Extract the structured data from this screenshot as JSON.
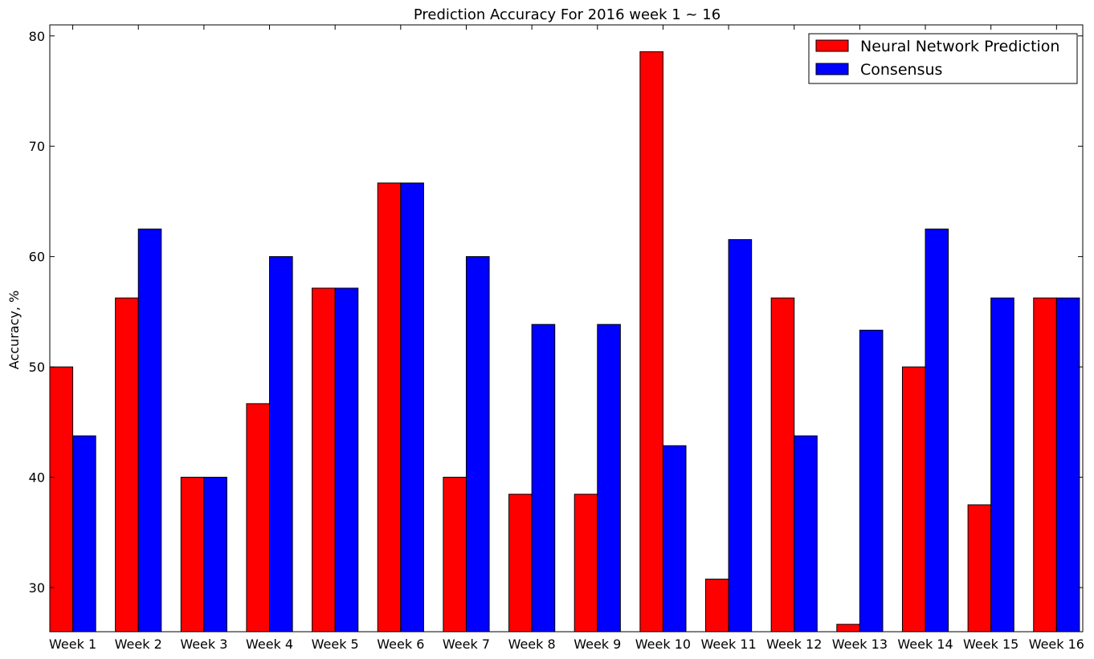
{
  "chart_data": {
    "type": "bar",
    "title": "Prediction Accuracy For 2016 week 1 ~ 16",
    "xlabel": "",
    "ylabel": "Accuracy, %",
    "ylim": [
      26,
      81
    ],
    "yticks": [
      30,
      40,
      50,
      60,
      70,
      80
    ],
    "grid": false,
    "legend_position": "top-right",
    "categories": [
      "Week 1",
      "Week 2",
      "Week 3",
      "Week 4",
      "Week 5",
      "Week 6",
      "Week 7",
      "Week 8",
      "Week 9",
      "Week 10",
      "Week 11",
      "Week 12",
      "Week 13",
      "Week 14",
      "Week 15",
      "Week 16"
    ],
    "series": [
      {
        "name": "Neural Network Prediction",
        "color": "#ff0000",
        "values": [
          50.0,
          56.25,
          40.0,
          46.67,
          57.14,
          66.67,
          40.0,
          38.46,
          38.46,
          78.57,
          30.77,
          56.25,
          26.67,
          50.0,
          37.5,
          56.25
        ]
      },
      {
        "name": "Consensus",
        "color": "#0000ff",
        "values": [
          43.75,
          62.5,
          40.0,
          60.0,
          57.14,
          66.67,
          60.0,
          53.85,
          53.85,
          42.86,
          61.54,
          43.75,
          53.33,
          62.5,
          56.25,
          56.25
        ]
      }
    ]
  }
}
